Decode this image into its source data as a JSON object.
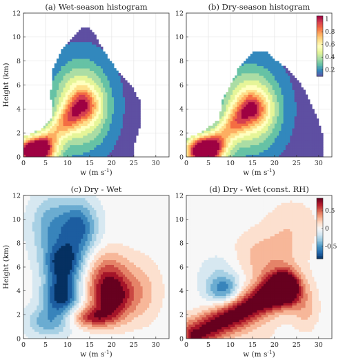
{
  "chart_data": [
    {
      "id": "a",
      "type": "contourf",
      "title": "(a) Wet-season histogram",
      "xlabel": "w (m s",
      "xlabel_sup": "-1",
      "xlabel_end": ")",
      "ylabel": "Height (km)",
      "xlim": [
        0,
        33
      ],
      "ylim": [
        0,
        12
      ],
      "xticks": [
        0,
        5,
        10,
        15,
        20,
        25,
        30
      ],
      "yticks": [
        0,
        2,
        4,
        6,
        8,
        10,
        12
      ],
      "blobs": [
        {
          "w0": 2.8,
          "h0": 0.45,
          "sw": 3.2,
          "sh": 0.9
        },
        {
          "w0": 13.0,
          "h0": 4.3,
          "sw": 4.2,
          "sh": 2.3
        }
      ],
      "outer": [
        [
          0,
          0
        ],
        [
          0,
          1.7
        ],
        [
          4,
          2.3
        ],
        [
          6.5,
          3.2
        ],
        [
          6.2,
          5.2
        ],
        [
          6.5,
          7.2
        ],
        [
          8.5,
          8.8
        ],
        [
          10.8,
          9.9
        ],
        [
          13.5,
          10.9
        ],
        [
          15.5,
          10.6
        ],
        [
          17.5,
          9.3
        ],
        [
          21,
          7.3
        ],
        [
          24,
          6.2
        ],
        [
          26.3,
          4.7
        ],
        [
          26.6,
          2.8
        ],
        [
          25.3,
          1.4
        ],
        [
          24.8,
          0.05
        ],
        [
          24.8,
          0
        ]
      ]
    },
    {
      "id": "b",
      "type": "contourf",
      "title": "(b) Dry-season histogram",
      "xlabel": "w (m s",
      "xlabel_sup": "-1",
      "xlabel_end": ")",
      "ylabel": "",
      "xlim": [
        0,
        33
      ],
      "ylim": [
        0,
        12
      ],
      "xticks": [
        0,
        5,
        10,
        15,
        20,
        25,
        30
      ],
      "yticks": [
        0,
        2,
        4,
        6,
        8,
        10,
        12
      ],
      "colorbar": {
        "ticks": [
          0.2,
          0.4,
          0.6,
          0.8,
          1
        ],
        "tick_labels": [
          "0.2",
          "0.4",
          "0.6",
          "0.8",
          "1"
        ],
        "range": [
          0.1,
          1.05
        ]
      },
      "blobs": [
        {
          "w0": 4.2,
          "h0": 0.5,
          "sw": 3.2,
          "sh": 0.9
        },
        {
          "w0": 14.5,
          "h0": 4.0,
          "sw": 4.4,
          "sh": 2.2
        }
      ],
      "outer": [
        [
          0,
          0
        ],
        [
          0,
          1.5
        ],
        [
          4,
          2.2
        ],
        [
          7.5,
          3.1
        ],
        [
          8,
          4.6
        ],
        [
          10,
          6.0
        ],
        [
          11.3,
          6.9
        ],
        [
          12,
          7.6
        ],
        [
          15,
          8.7
        ],
        [
          18,
          8.8
        ],
        [
          20.5,
          8.0
        ],
        [
          23.5,
          7.2
        ],
        [
          27,
          5.5
        ],
        [
          29.5,
          3.5
        ],
        [
          31,
          1.6
        ],
        [
          30.8,
          0.05
        ],
        [
          30.8,
          0
        ]
      ]
    },
    {
      "id": "c",
      "type": "contourf",
      "title": "(c) Dry - Wet",
      "xlabel": "w (m s",
      "xlabel_sup": "-1",
      "xlabel_end": ")",
      "ylabel": "Height (km)",
      "xlim": [
        0,
        33
      ],
      "ylim": [
        0,
        12
      ],
      "xticks": [
        0,
        5,
        10,
        15,
        20,
        25,
        30
      ],
      "yticks": [
        0,
        2,
        4,
        6,
        8,
        10,
        12
      ],
      "blobs": [
        {
          "w0": 9.0,
          "h0": 6.3,
          "sw": 3.0,
          "sh": 1.2,
          "a": -1.0
        },
        {
          "w0": 8.5,
          "h0": 3.6,
          "sw": 2.8,
          "sh": 1.1,
          "a": -1.0
        },
        {
          "w0": 12.5,
          "h0": 9.3,
          "sw": 3.0,
          "sh": 1.6,
          "a": -0.8
        },
        {
          "w0": 6.0,
          "h0": 9.5,
          "sw": 3.2,
          "sh": 1.8,
          "a": -0.5
        },
        {
          "w0": 5.5,
          "h0": 1.4,
          "sw": 3.5,
          "sh": 0.9,
          "a": -0.5
        },
        {
          "w0": 20.0,
          "h0": 3.4,
          "sw": 3.3,
          "sh": 1.3,
          "a": 1.0
        },
        {
          "w0": 19.0,
          "h0": 5.5,
          "sw": 3.5,
          "sh": 1.4,
          "a": 0.55
        },
        {
          "w0": 15.5,
          "h0": 1.8,
          "sw": 3.5,
          "sh": 0.6,
          "a": 0.7
        },
        {
          "w0": 27.0,
          "h0": 4.0,
          "sw": 3.0,
          "sh": 1.8,
          "a": 0.3
        }
      ]
    },
    {
      "id": "d",
      "type": "contourf",
      "title": "(d) Dry - Wet (const. RH)",
      "xlabel": "w (m s",
      "xlabel_sup": "-1",
      "xlabel_end": ")",
      "ylabel": "",
      "xlim": [
        0,
        33
      ],
      "ylim": [
        0,
        12
      ],
      "xticks": [
        0,
        5,
        10,
        15,
        20,
        25,
        30
      ],
      "yticks": [
        0,
        2,
        4,
        6,
        8,
        10,
        12
      ],
      "colorbar": {
        "ticks": [
          -0.5,
          0,
          0.5
        ],
        "tick_labels": [
          "-0.5",
          "0",
          "0.5"
        ],
        "range": [
          -0.85,
          0.85
        ]
      },
      "blobs": [
        {
          "w0": 8.5,
          "h0": 4.1,
          "sw": 2.5,
          "sh": 0.8,
          "a": -0.55
        },
        {
          "w0": 8.0,
          "h0": 5.2,
          "sw": 3.5,
          "sh": 1.4,
          "a": -0.25
        },
        {
          "w0": 14.5,
          "h0": 1.5,
          "sw": 5.0,
          "sh": 2.0,
          "a": 0.15
        },
        {
          "w0": 22.0,
          "h0": 4.2,
          "sw": 3.0,
          "sh": 1.0,
          "a": 0.95
        },
        {
          "w0": 18.0,
          "h0": 6.8,
          "sw": 5.0,
          "sh": 1.5,
          "a": 0.35
        },
        {
          "w0": 24.0,
          "h0": 9.5,
          "sw": 4.0,
          "sh": 1.5,
          "a": 0.2
        },
        {
          "w0": 27.0,
          "h0": 2.5,
          "sw": 2.0,
          "sh": 1.2,
          "a": 0.3
        }
      ],
      "ridge": {
        "from": [
          2,
          0.3
        ],
        "to": [
          22,
          4.2
        ],
        "a": 1.0,
        "sw": 1.0
      }
    }
  ],
  "colors": {
    "jet_like": [
      "#5e4fa2",
      "#3288bd",
      "#66c2a5",
      "#abdda4",
      "#e6f598",
      "#ffffbf",
      "#fee08b",
      "#fdae61",
      "#f46d43",
      "#d53e4f",
      "#9e0142"
    ],
    "diverging": [
      "#053061",
      "#2166ac",
      "#4393c3",
      "#92c5de",
      "#d1e5f0",
      "#f7f7f7",
      "#fddbc7",
      "#f4a582",
      "#d6604d",
      "#b2182b",
      "#67001f"
    ]
  }
}
